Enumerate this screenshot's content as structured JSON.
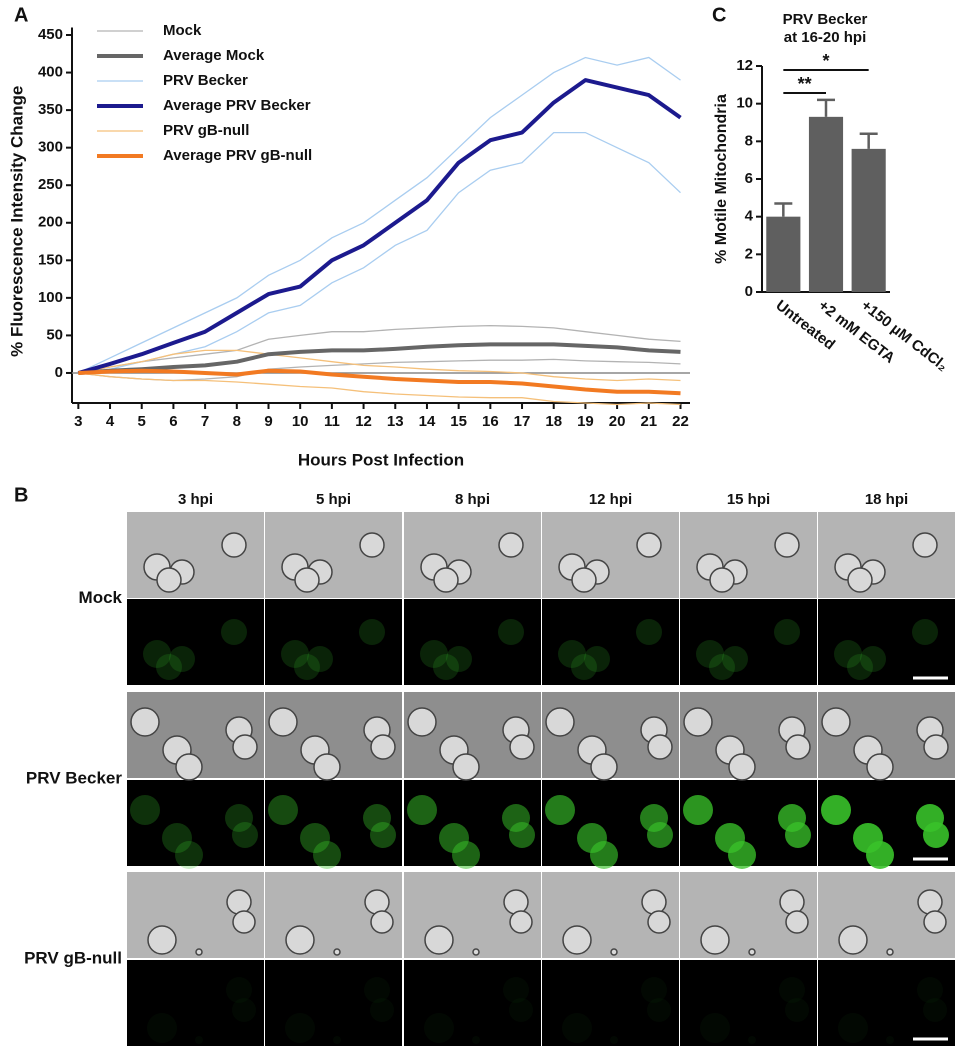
{
  "panel_labels": [
    "A",
    "B",
    "C"
  ],
  "chart_data": [
    {
      "type": "line",
      "x_label": "Hours Post Infection",
      "y_label": "% Fluorescence Intensity Change",
      "x": [
        3,
        4,
        5,
        6,
        7,
        8,
        9,
        10,
        11,
        12,
        13,
        14,
        15,
        16,
        17,
        18,
        19,
        20,
        21,
        22
      ],
      "xlim": [
        2.8,
        22.3
      ],
      "xticks": [
        3,
        4,
        5,
        6,
        7,
        8,
        9,
        10,
        11,
        12,
        13,
        14,
        15,
        16,
        17,
        18,
        19,
        20,
        21,
        22
      ],
      "ylim": [
        -40,
        460
      ],
      "yticks": [
        0,
        50,
        100,
        150,
        200,
        250,
        300,
        350,
        400,
        450
      ],
      "zero_line": true,
      "series": [
        {
          "name": "Mock",
          "color": "#b3b3b3",
          "width": 1.3,
          "traces": [
            [
              0,
              8,
              15,
              20,
              25,
              30,
              45,
              50,
              55,
              55,
              58,
              60,
              62,
              63,
              62,
              60,
              55,
              50,
              45,
              42
            ],
            [
              0,
              -5,
              -8,
              -10,
              -8,
              -5,
              5,
              8,
              10,
              12,
              14,
              15,
              16,
              17,
              17,
              18,
              16,
              15,
              14,
              12
            ]
          ]
        },
        {
          "name": "Average Mock",
          "color": "#666666",
          "width": 4,
          "values": [
            0,
            3,
            5,
            8,
            10,
            15,
            25,
            28,
            30,
            30,
            32,
            35,
            37,
            38,
            38,
            38,
            36,
            34,
            30,
            28
          ]
        },
        {
          "name": "PRV Becker",
          "color": "#a9cdf0",
          "width": 1.3,
          "traces": [
            [
              0,
              20,
              40,
              60,
              80,
              100,
              130,
              150,
              180,
              200,
              230,
              260,
              300,
              340,
              370,
              400,
              420,
              410,
              420,
              390
            ],
            [
              0,
              5,
              15,
              25,
              35,
              55,
              80,
              90,
              120,
              140,
              170,
              190,
              240,
              270,
              280,
              320,
              320,
              300,
              280,
              240
            ]
          ]
        },
        {
          "name": "Average PRV Becker",
          "color": "#1c1a8e",
          "width": 4,
          "values": [
            0,
            12,
            25,
            40,
            55,
            80,
            105,
            115,
            150,
            170,
            200,
            230,
            280,
            310,
            320,
            360,
            390,
            380,
            370,
            340
          ]
        },
        {
          "name": "PRV gB-null",
          "color": "#f5c07a",
          "width": 1.3,
          "traces": [
            [
              0,
              8,
              15,
              25,
              30,
              30,
              25,
              20,
              15,
              10,
              8,
              5,
              3,
              2,
              0,
              -5,
              -8,
              -10,
              -8,
              -10
            ],
            [
              0,
              -5,
              -8,
              -10,
              -10,
              -12,
              -15,
              -18,
              -20,
              -25,
              -28,
              -30,
              -32,
              -33,
              -33,
              -38,
              -40,
              -42,
              -40,
              -42
            ]
          ]
        },
        {
          "name": "Average PRV gB-null",
          "color": "#f27a22",
          "width": 4,
          "values": [
            0,
            2,
            3,
            2,
            0,
            -2,
            3,
            2,
            -2,
            -5,
            -8,
            -10,
            -12,
            -12,
            -14,
            -18,
            -22,
            -25,
            -25,
            -27
          ]
        }
      ]
    },
    {
      "type": "bar",
      "title": [
        "PRV Becker",
        "at 16-20 hpi"
      ],
      "y_label": "% Motile Mitochondria",
      "categories": [
        "Untreated",
        "+2 mM EGTA",
        "+150 µM CdCl₂"
      ],
      "values": [
        4.0,
        9.3,
        7.6
      ],
      "errors": [
        0.7,
        0.9,
        0.8
      ],
      "color": "#5f5f5f",
      "ylim": [
        0,
        12
      ],
      "yticks": [
        0,
        2,
        4,
        6,
        8,
        10,
        12
      ],
      "significance": [
        "**",
        "*"
      ]
    }
  ],
  "panel_b": {
    "columns": [
      "3 hpi",
      "5 hpi",
      "8 hpi",
      "12 hpi",
      "15 hpi",
      "18 hpi"
    ],
    "rows": [
      "Mock",
      "PRV Becker",
      "PRV gB-null"
    ]
  }
}
